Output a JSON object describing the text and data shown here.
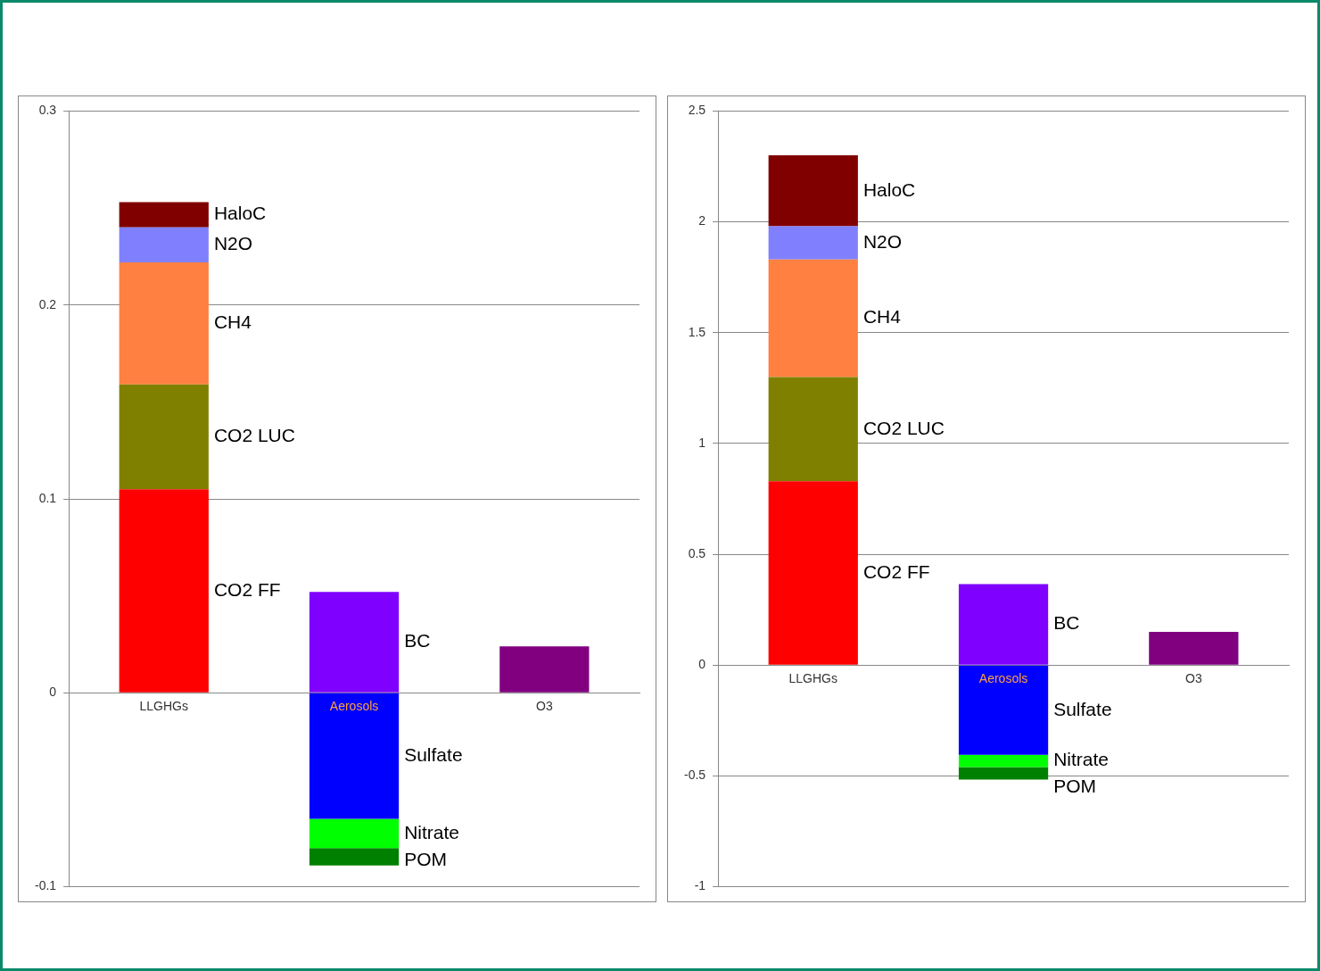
{
  "chart_data": [
    {
      "type": "bar",
      "stacked": true,
      "categories": [
        "LLGHGs",
        "Aerosols",
        "O3"
      ],
      "ylim": [
        -0.1,
        0.3
      ],
      "yticks": [
        -0.1,
        0,
        0.1,
        0.2,
        0.3
      ],
      "grid": "y",
      "legend": false,
      "series": [
        {
          "name": "CO2 FF",
          "color": "#ff0000",
          "values": [
            0.105,
            null,
            null
          ]
        },
        {
          "name": "CO2 LUC",
          "color": "#808000",
          "values": [
            0.054,
            null,
            null
          ]
        },
        {
          "name": "CH4",
          "color": "#ff8040",
          "values": [
            0.063,
            null,
            null
          ]
        },
        {
          "name": "N2O",
          "color": "#8080ff",
          "values": [
            0.018,
            null,
            null
          ]
        },
        {
          "name": "HaloC",
          "color": "#800000",
          "values": [
            0.013,
            null,
            null
          ]
        },
        {
          "name": "BC",
          "color": "#8000ff",
          "values": [
            null,
            0.052,
            null
          ]
        },
        {
          "name": "Sulfate",
          "color": "#0000ff",
          "values": [
            null,
            -0.065,
            null
          ]
        },
        {
          "name": "Nitrate",
          "color": "#00ff00",
          "values": [
            null,
            -0.015,
            null
          ]
        },
        {
          "name": "POM",
          "color": "#008000",
          "values": [
            null,
            -0.009,
            null
          ]
        },
        {
          "color": "#800080",
          "values": [
            null,
            null,
            0.024
          ]
        }
      ]
    },
    {
      "type": "bar",
      "stacked": true,
      "categories": [
        "LLGHGs",
        "Aerosols",
        "O3"
      ],
      "ylim": [
        -1,
        2.5
      ],
      "yticks": [
        -1,
        -0.5,
        0,
        0.5,
        1,
        1.5,
        2,
        2.5
      ],
      "grid": "y",
      "legend": false,
      "series": [
        {
          "name": "CO2 FF",
          "color": "#ff0000",
          "values": [
            0.83,
            null,
            null
          ]
        },
        {
          "name": "CO2 LUC",
          "color": "#808000",
          "values": [
            0.47,
            null,
            null
          ]
        },
        {
          "name": "CH4",
          "color": "#ff8040",
          "values": [
            0.53,
            null,
            null
          ]
        },
        {
          "name": "N2O",
          "color": "#8080ff",
          "values": [
            0.15,
            null,
            null
          ]
        },
        {
          "name": "HaloC",
          "color": "#800000",
          "values": [
            0.32,
            null,
            null
          ]
        },
        {
          "name": "BC",
          "color": "#8000ff",
          "values": [
            null,
            0.365,
            null
          ]
        },
        {
          "name": "Sulfate",
          "color": "#0000ff",
          "values": [
            null,
            -0.405,
            null
          ]
        },
        {
          "name": "Nitrate",
          "color": "#00ff00",
          "values": [
            null,
            -0.055,
            null
          ]
        },
        {
          "name": "POM",
          "color": "#008000",
          "values": [
            null,
            -0.056,
            null
          ]
        },
        {
          "color": "#800080",
          "values": [
            null,
            null,
            0.15
          ]
        }
      ]
    }
  ]
}
